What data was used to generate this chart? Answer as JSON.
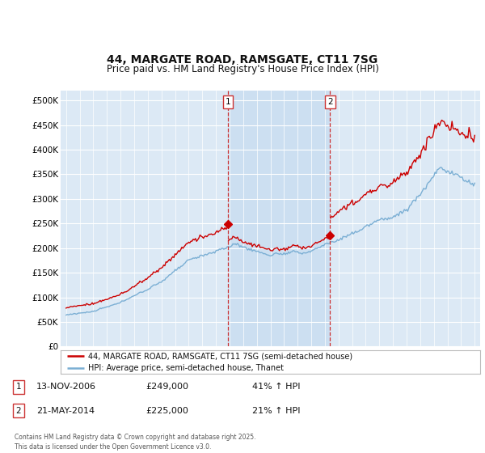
{
  "title": "44, MARGATE ROAD, RAMSGATE, CT11 7SG",
  "subtitle": "Price paid vs. HM Land Registry's House Price Index (HPI)",
  "legend_line1": "44, MARGATE ROAD, RAMSGATE, CT11 7SG (semi-detached house)",
  "legend_line2": "HPI: Average price, semi-detached house, Thanet",
  "footnote": "Contains HM Land Registry data © Crown copyright and database right 2025.\nThis data is licensed under the Open Government Licence v3.0.",
  "annotation1_label": "1",
  "annotation1_date": "13-NOV-2006",
  "annotation1_price": "£249,000",
  "annotation1_hpi": "41% ↑ HPI",
  "annotation2_label": "2",
  "annotation2_date": "21-MAY-2014",
  "annotation2_price": "£225,000",
  "annotation2_hpi": "21% ↑ HPI",
  "ylim": [
    0,
    520000
  ],
  "yticks": [
    0,
    50000,
    100000,
    150000,
    200000,
    250000,
    300000,
    350000,
    400000,
    450000,
    500000
  ],
  "background_color": "#dce9f5",
  "shade_color": "#c8ddf0",
  "line1_color": "#cc0000",
  "line2_color": "#7bafd4",
  "vline_color": "#cc3333",
  "x_start_year": 1995,
  "x_end_year": 2025,
  "sale1_year": 2006.87,
  "sale1_price": 249000,
  "sale2_year": 2014.38,
  "sale2_price": 225000,
  "fig_width": 6.0,
  "fig_height": 5.6,
  "dpi": 100
}
